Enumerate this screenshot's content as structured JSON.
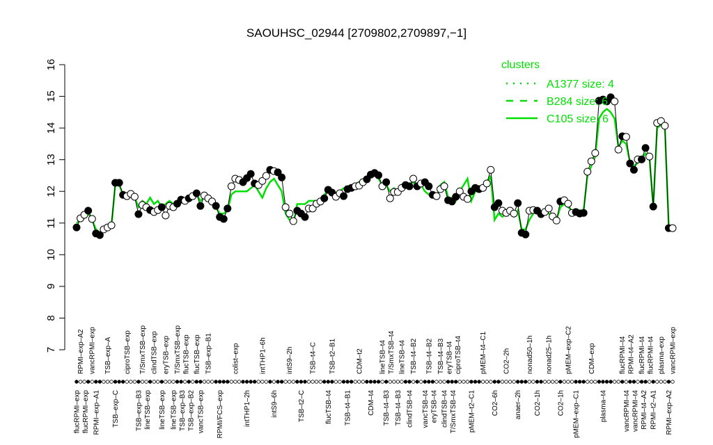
{
  "chart_data": {
    "type": "line",
    "title": "SAOUHSC_02944 [2709802,2709897,−1]",
    "xlabel": "",
    "ylabel": "",
    "ylim": [
      7,
      16
    ],
    "yticks": [
      7,
      8,
      9,
      10,
      11,
      12,
      13,
      14,
      15,
      16
    ],
    "grid": false,
    "colors": {
      "points": "#000000",
      "cluster": "#00e000"
    },
    "legend": {
      "title": "clusters",
      "placement": "top-right",
      "entries": [
        {
          "name": "A1377 size: 4",
          "style": "dotted"
        },
        {
          "name": "B284 size: 6",
          "style": "dashed"
        },
        {
          "name": "C105 size: 6",
          "style": "solid"
        }
      ]
    },
    "values": [
      10.86,
      11.15,
      11.26,
      11.39,
      11.13,
      10.67,
      10.62,
      10.8,
      10.86,
      10.93,
      12.27,
      12.27,
      11.89,
      11.85,
      11.92,
      11.83,
      11.28,
      11.57,
      11.5,
      11.41,
      11.35,
      11.41,
      11.5,
      11.24,
      11.54,
      11.5,
      11.61,
      11.74,
      11.7,
      11.78,
      11.85,
      11.94,
      11.54,
      11.87,
      11.78,
      11.68,
      11.54,
      11.19,
      11.13,
      11.46,
      12.16,
      12.4,
      12.36,
      12.29,
      12.42,
      12.55,
      12.25,
      12.2,
      12.33,
      12.49,
      12.68,
      12.64,
      12.6,
      12.44,
      11.5,
      11.3,
      11.06,
      11.39,
      11.3,
      11.19,
      11.46,
      11.46,
      11.61,
      11.68,
      11.78,
      12.05,
      11.96,
      11.83,
      11.94,
      11.85,
      12.07,
      12.11,
      12.16,
      12.18,
      12.29,
      12.38,
      12.53,
      12.58,
      12.51,
      12.16,
      12.29,
      11.78,
      11.98,
      11.98,
      12.11,
      12.2,
      12.16,
      12.4,
      12.16,
      12.25,
      12.29,
      12.16,
      11.89,
      11.85,
      12.07,
      12.16,
      11.72,
      11.68,
      11.83,
      12.0,
      11.83,
      11.76,
      12.0,
      12.11,
      12.07,
      12.11,
      12.25,
      12.68,
      11.5,
      11.63,
      11.39,
      11.32,
      11.39,
      11.3,
      11.63,
      10.69,
      10.64,
      11.39,
      11.41,
      11.39,
      11.28,
      11.35,
      11.46,
      11.21,
      11.08,
      11.68,
      11.72,
      11.61,
      11.32,
      11.35,
      11.3,
      11.32,
      12.62,
      12.95,
      13.21,
      14.86,
      14.9,
      14.84,
      14.97,
      14.84,
      13.32,
      13.74,
      13.72,
      12.88,
      12.68,
      13.01,
      13.01,
      13.37,
      13.1,
      11.52,
      14.16,
      14.22,
      14.07,
      10.84,
      10.84
    ],
    "filled": [
      1,
      0,
      0,
      1,
      0,
      1,
      1,
      0,
      0,
      0,
      1,
      1,
      1,
      0,
      0,
      0,
      1,
      0,
      0,
      1,
      0,
      0,
      1,
      0,
      0,
      0,
      1,
      1,
      0,
      1,
      0,
      1,
      1,
      0,
      0,
      0,
      1,
      1,
      1,
      1,
      0,
      0,
      0,
      1,
      1,
      1,
      1,
      0,
      0,
      0,
      1,
      0,
      1,
      1,
      0,
      0,
      0,
      1,
      1,
      1,
      0,
      0,
      0,
      0,
      1,
      1,
      1,
      0,
      0,
      1,
      1,
      1,
      0,
      0,
      0,
      1,
      1,
      1,
      1,
      0,
      1,
      0,
      0,
      0,
      0,
      1,
      1,
      0,
      1,
      0,
      1,
      1,
      1,
      0,
      0,
      0,
      1,
      1,
      1,
      0,
      0,
      0,
      1,
      1,
      1,
      0,
      0,
      0,
      1,
      1,
      0,
      0,
      0,
      0,
      1,
      1,
      1,
      0,
      0,
      1,
      1,
      0,
      0,
      0,
      0,
      1,
      0,
      0,
      0,
      1,
      1,
      1,
      0,
      0,
      0,
      1,
      1,
      1,
      1,
      0,
      0,
      1,
      0,
      1,
      1,
      0,
      1,
      1,
      0,
      1,
      0,
      0,
      0,
      1,
      0
    ],
    "series": [
      {
        "name": "C105 size: 6",
        "values": [
          11.0,
          11.1,
          11.2,
          11.3,
          11.1,
          10.8,
          10.7,
          10.8,
          10.85,
          10.9,
          12.2,
          12.2,
          11.9,
          11.9,
          11.9,
          11.8,
          11.5,
          11.7,
          11.6,
          11.8,
          11.6,
          11.7,
          11.5,
          11.6,
          11.7,
          11.6,
          11.7,
          11.8,
          11.7,
          11.8,
          11.9,
          11.9,
          11.7,
          11.8,
          11.7,
          11.6,
          11.5,
          11.3,
          11.3,
          11.4,
          11.9,
          12.0,
          12.0,
          12.0,
          12.0,
          12.1,
          12.2,
          12.0,
          11.8,
          12.1,
          12.3,
          12.4,
          12.2,
          12.0,
          11.3,
          11.1,
          11.0,
          11.6,
          11.6,
          11.6,
          11.7,
          11.7,
          11.7,
          11.7,
          11.9,
          12.0,
          12.0,
          11.9,
          12.0,
          12.1,
          12.1,
          12.2,
          12.2,
          12.3,
          12.3,
          12.4,
          12.5,
          12.5,
          12.4,
          12.2,
          12.2,
          12.0,
          12.1,
          12.0,
          12.2,
          12.1,
          12.2,
          12.3,
          12.1,
          12.2,
          12.0,
          11.9,
          11.9,
          11.8,
          12.2,
          12.3,
          11.8,
          11.8,
          11.7,
          12.0,
          12.2,
          12.4,
          11.7,
          12.0,
          12.0,
          12.1,
          12.2,
          12.5,
          11.1,
          11.3,
          11.2,
          11.3,
          11.3,
          11.2,
          11.4,
          10.8,
          10.8,
          11.1,
          11.3,
          11.4,
          11.3,
          11.4,
          11.3,
          11.2,
          11.1,
          11.5,
          11.6,
          11.5,
          11.4,
          11.4,
          11.4,
          11.4,
          12.5,
          12.8,
          13.1,
          14.3,
          14.5,
          14.6,
          14.5,
          14.3,
          13.4,
          13.6,
          13.5,
          12.9,
          12.8,
          12.9,
          13.0,
          13.2,
          13.1,
          11.5,
          14.0,
          14.1,
          14.0,
          10.9,
          10.9
        ]
      }
    ],
    "labels_top": [
      {
        "i": 1,
        "text": "RPMI–exp–A2"
      },
      {
        "i": 4,
        "text": "vancRPMI–exp"
      },
      {
        "i": 8,
        "text": "TSB–exp–A"
      },
      {
        "i": 13,
        "text": "ciproTSB–exp"
      },
      {
        "i": 17,
        "text": "T/SmxTSB–exp"
      },
      {
        "i": 20,
        "text": "clindTSB–exp"
      },
      {
        "i": 23,
        "text": "eryTSB–exp"
      },
      {
        "i": 26,
        "text": "T/SmxTSB–exp"
      },
      {
        "i": 28,
        "text": "flucTSB–exp"
      },
      {
        "i": 31,
        "text": "flucTSB–exp"
      },
      {
        "i": 34,
        "text": "TSB–exp–B1"
      },
      {
        "i": 41,
        "text": "colist–exp"
      },
      {
        "i": 48,
        "text": "intTHP1–6h"
      },
      {
        "i": 55,
        "text": "intS9–2h"
      },
      {
        "i": 61,
        "text": "TSB–t4–C"
      },
      {
        "i": 66,
        "text": "TSB–t2–B1"
      },
      {
        "i": 73,
        "text": "CDM–t2"
      },
      {
        "i": 79,
        "text": "lineTSB–t4"
      },
      {
        "i": 81,
        "text": "T/SmxTSB–t4"
      },
      {
        "i": 84,
        "text": "lineTSB–t4"
      },
      {
        "i": 87,
        "text": "TSB–t4–B2"
      },
      {
        "i": 91,
        "text": "TSB–t4–B2"
      },
      {
        "i": 94,
        "text": "TSB–t4–B3"
      },
      {
        "i": 96,
        "text": "eryTSB–t4"
      },
      {
        "i": 98,
        "text": "ciproTSB–t4"
      },
      {
        "i": 105,
        "text": "pMEM–t4–C1"
      },
      {
        "i": 111,
        "text": "CO2–2h"
      },
      {
        "i": 117,
        "text": "nonad50–1h"
      },
      {
        "i": 122,
        "text": "nonad25–1h"
      },
      {
        "i": 127,
        "text": "pMEM–exp–C2"
      },
      {
        "i": 133,
        "text": "CDM–exp"
      },
      {
        "i": 141,
        "text": "flucRPMI–t4"
      },
      {
        "i": 142,
        "text": "RPMI–t4–A2"
      },
      {
        "i": 146,
        "text": "flucRPMI–t4"
      },
      {
        "i": 148,
        "text": "flucRPMI–t4"
      },
      {
        "i": 151,
        "text": "plasma–exp"
      },
      {
        "i": 154,
        "text": "vancRPMI–exp"
      }
    ],
    "labels_bottom": [
      {
        "i": 0,
        "text": "flucRPMI–exp"
      },
      {
        "i": 2,
        "text": "flucRPMI–exp"
      },
      {
        "i": 5,
        "text": "RPMI–exp–A1"
      },
      {
        "i": 10,
        "text": "TSB–exp–C"
      },
      {
        "i": 16,
        "text": "TSB–exp–B3"
      },
      {
        "i": 18,
        "text": "lineTSB–exp"
      },
      {
        "i": 22,
        "text": "lineTSB–exp"
      },
      {
        "i": 25,
        "text": "lineTSB–exp"
      },
      {
        "i": 26,
        "text": "TSB–exp–B3"
      },
      {
        "i": 29,
        "text": "TSB–exp–B2"
      },
      {
        "i": 32,
        "text": "vancTSB–exp"
      },
      {
        "i": 37,
        "text": "RPMI/FCS–exp"
      },
      {
        "i": 44,
        "text": "intTHP1–2h"
      },
      {
        "i": 51,
        "text": "intS9–6h"
      },
      {
        "i": 58,
        "text": "TSB–t2–C"
      },
      {
        "i": 65,
        "text": "flucTSB–t4"
      },
      {
        "i": 70,
        "text": "TSB–t4–B1"
      },
      {
        "i": 76,
        "text": "CDM–t4"
      },
      {
        "i": 80,
        "text": "TSB–t4–B3"
      },
      {
        "i": 83,
        "text": "TSB–t4–B3"
      },
      {
        "i": 86,
        "text": "clindTSB–t4"
      },
      {
        "i": 90,
        "text": "vancTSB–t4"
      },
      {
        "i": 92,
        "text": "eryTSB–t4"
      },
      {
        "i": 95,
        "text": "clindTSB–t4"
      },
      {
        "i": 97,
        "text": "T/SmxTSB–t4"
      },
      {
        "i": 102,
        "text": "pMEM–t2–C1"
      },
      {
        "i": 108,
        "text": "CO2–6h"
      },
      {
        "i": 114,
        "text": "anaer–2h"
      },
      {
        "i": 119,
        "text": "CO2–1h"
      },
      {
        "i": 125,
        "text": "CO2–1h"
      },
      {
        "i": 129,
        "text": "pMEM–exp–C1"
      },
      {
        "i": 136,
        "text": "plasma–t4"
      },
      {
        "i": 142,
        "text": "vancRPMI–t4"
      },
      {
        "i": 144,
        "text": "vancRPMI–t4"
      },
      {
        "i": 146,
        "text": "RPMI–t4–A2"
      },
      {
        "i": 149,
        "text": "RPMI–t2–A1"
      },
      {
        "i": 153,
        "text": "RPMI–exp–A2"
      }
    ]
  }
}
